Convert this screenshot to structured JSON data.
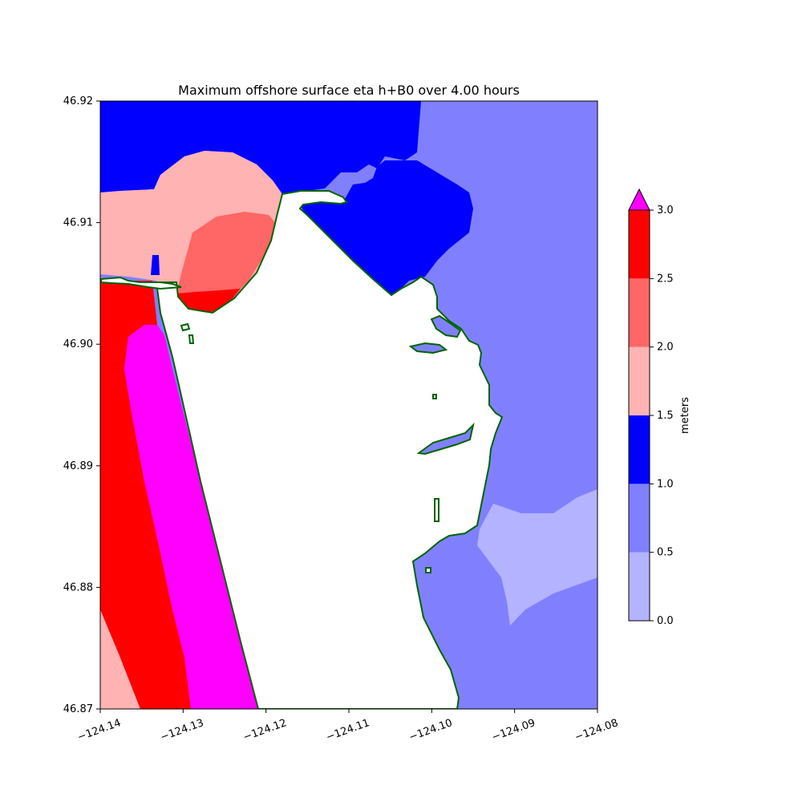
{
  "title": "Maximum offshore surface eta h+B0 over 4.00 hours",
  "chart_data": {
    "type": "heatmap",
    "title": "Maximum offshore surface eta h+B0 over 4.00 hours",
    "xlim": [
      -124.14,
      -124.08
    ],
    "ylim": [
      46.87,
      46.92
    ],
    "x_ticks": [
      "−124.14",
      "−124.13",
      "−124.12",
      "−124.11",
      "−124.10",
      "−124.09",
      "−124.08"
    ],
    "y_ticks": [
      "46.87",
      "46.88",
      "46.89",
      "46.90",
      "46.91",
      "46.92"
    ],
    "colorbar": {
      "label": "meters",
      "levels": [
        0.0,
        0.5,
        1.0,
        1.5,
        2.0,
        2.5,
        3.0
      ],
      "tick_labels": [
        "0.0",
        "0.5",
        "1.0",
        "1.5",
        "2.0",
        "2.5",
        "3.0"
      ],
      "colors": [
        "#b3b3ff",
        "#8080ff",
        "#0000ff",
        "#ffb3b3",
        "#ff6666",
        "#ff0000"
      ],
      "extend_max_color": "#ff00ff"
    },
    "land_color": "#ffffff",
    "shoreline_color": "#006400",
    "grid": false
  }
}
